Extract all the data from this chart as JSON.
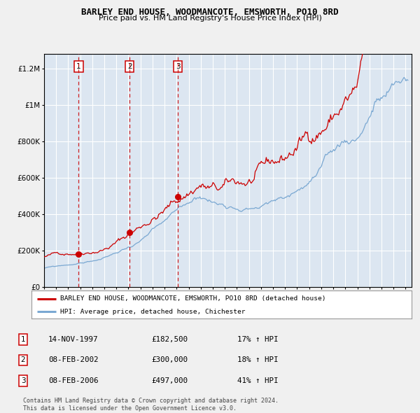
{
  "title": "BARLEY END HOUSE, WOODMANCOTE, EMSWORTH, PO10 8RD",
  "subtitle": "Price paid vs. HM Land Registry's House Price Index (HPI)",
  "legend_property": "BARLEY END HOUSE, WOODMANCOTE, EMSWORTH, PO10 8RD (detached house)",
  "legend_hpi": "HPI: Average price, detached house, Chichester",
  "sales": [
    {
      "num": 1,
      "date_dec": 1997.869,
      "price": 182500
    },
    {
      "num": 2,
      "date_dec": 2002.103,
      "price": 300000
    },
    {
      "num": 3,
      "date_dec": 2006.103,
      "price": 497000
    }
  ],
  "table_rows": [
    {
      "num": 1,
      "date": "14-NOV-1997",
      "price": "£182,500",
      "change": "17% ↑ HPI"
    },
    {
      "num": 2,
      "date": "08-FEB-2002",
      "price": "£300,000",
      "change": "18% ↑ HPI"
    },
    {
      "num": 3,
      "date": "08-FEB-2006",
      "price": "£497,000",
      "change": "41% ↑ HPI"
    }
  ],
  "ylim": [
    0,
    1300000
  ],
  "xlim": [
    1995.0,
    2025.5
  ],
  "background_color": "#dce6f1",
  "fig_background": "#f0f0f0",
  "line_color_red": "#cc0000",
  "line_color_blue": "#7aa8d2",
  "dashed_color": "#cc0000",
  "grid_color": "#ffffff",
  "footer_text": "Contains HM Land Registry data © Crown copyright and database right 2024.\nThis data is licensed under the Open Government Licence v3.0."
}
